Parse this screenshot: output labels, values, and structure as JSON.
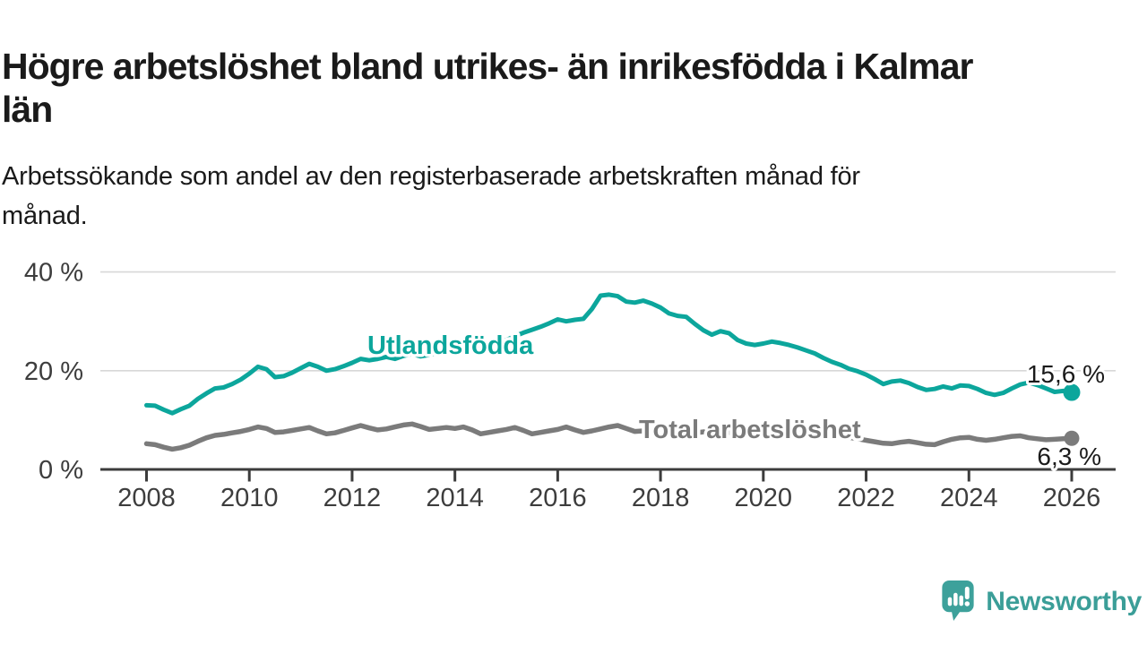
{
  "header": {
    "title_lines": [
      "Högre arbetslöshet bland utrikes- än inrikesfödda i Kalmar",
      "län"
    ],
    "subtitle_lines": [
      "Arbetssökande som andel av den registerbaserade arbetskraften månad för",
      "månad."
    ]
  },
  "chart_data": {
    "type": "line",
    "unit": "%",
    "x_start_year": 2008,
    "points_per_year": 6,
    "x_axis": {
      "tick_years": [
        2008,
        2010,
        2012,
        2014,
        2016,
        2018,
        2020,
        2022,
        2024,
        2026
      ],
      "tick_labels": [
        "2008",
        "2010",
        "2012",
        "2014",
        "2016",
        "2018",
        "2020",
        "2022",
        "2024",
        "2026"
      ]
    },
    "y_axis": {
      "tick_values": [
        0,
        20,
        40
      ],
      "tick_labels": [
        "0 %",
        "20 %",
        "40 %"
      ],
      "range": [
        0,
        42
      ]
    },
    "grid": true,
    "grid_color": "#d8d8d8",
    "axis_color": "#3c3c3c",
    "text_color": "#3d3d3d",
    "value_label_color": "#1a1a1a",
    "series": [
      {
        "name": "Utlandsfödda",
        "color": "#0ca69c",
        "end_label": "15,6 %",
        "end_value": 15.6,
        "values": [
          13.0,
          12.9,
          12.1,
          11.4,
          12.2,
          12.9,
          14.3,
          15.4,
          16.4,
          16.6,
          17.3,
          18.2,
          19.4,
          20.8,
          20.3,
          18.7,
          18.9,
          19.6,
          20.5,
          21.4,
          20.8,
          20.0,
          20.3,
          20.9,
          21.6,
          22.4,
          22.1,
          22.4,
          22.8,
          22.4,
          23.0,
          23.4,
          22.9,
          23.2,
          23.7,
          23.9,
          24.3,
          24.8,
          24.4,
          24.9,
          25.4,
          25.7,
          26.2,
          27.0,
          27.7,
          28.3,
          28.9,
          29.6,
          30.4,
          30.0,
          30.3,
          30.5,
          32.5,
          35.2,
          35.4,
          35.1,
          34.0,
          33.8,
          34.2,
          33.6,
          32.8,
          31.6,
          31.1,
          30.9,
          29.5,
          28.2,
          27.3,
          28.0,
          27.6,
          26.2,
          25.5,
          25.2,
          25.5,
          25.9,
          25.6,
          25.2,
          24.7,
          24.1,
          23.5,
          22.6,
          21.8,
          21.2,
          20.4,
          19.9,
          19.2,
          18.3,
          17.3,
          17.8,
          18.0,
          17.5,
          16.7,
          16.1,
          16.3,
          16.8,
          16.4,
          17.0,
          16.9,
          16.3,
          15.5,
          15.1,
          15.5,
          16.4,
          17.2,
          17.6,
          17.1,
          16.4,
          15.7,
          15.9,
          15.6
        ]
      },
      {
        "name": "Total arbetslöshet",
        "color": "#7b7b7b",
        "end_label": "6,3 %",
        "end_value": 6.3,
        "values": [
          5.2,
          5.0,
          4.5,
          4.1,
          4.4,
          4.9,
          5.7,
          6.4,
          6.9,
          7.1,
          7.4,
          7.7,
          8.1,
          8.6,
          8.3,
          7.5,
          7.6,
          7.9,
          8.2,
          8.5,
          7.8,
          7.2,
          7.4,
          7.9,
          8.4,
          8.9,
          8.4,
          8.0,
          8.2,
          8.6,
          9.0,
          9.2,
          8.7,
          8.1,
          8.3,
          8.5,
          8.3,
          8.6,
          8.0,
          7.2,
          7.5,
          7.8,
          8.1,
          8.5,
          7.9,
          7.2,
          7.5,
          7.8,
          8.1,
          8.6,
          8.0,
          7.5,
          7.8,
          8.2,
          8.6,
          8.9,
          8.3,
          7.7,
          7.8,
          8.0,
          8.2,
          8.4,
          7.8,
          7.3,
          7.4,
          7.6,
          7.8,
          8.0,
          7.5,
          7.1,
          7.2,
          7.4,
          7.8,
          8.4,
          8.8,
          8.5,
          8.2,
          7.9,
          7.8,
          7.6,
          7.2,
          6.8,
          6.5,
          6.2,
          5.9,
          5.6,
          5.3,
          5.2,
          5.5,
          5.7,
          5.4,
          5.1,
          5.0,
          5.6,
          6.1,
          6.4,
          6.5,
          6.1,
          5.9,
          6.1,
          6.4,
          6.7,
          6.8,
          6.4,
          6.2,
          6.0,
          6.1,
          6.2,
          6.3
        ]
      }
    ],
    "title": "Högre arbetslöshet bland utrikes- än inrikesfödda i Kalmar län",
    "legend_position": "inline-labels"
  },
  "footer": {
    "brand": "Newsworthy",
    "brand_color": "#3b9e98"
  }
}
